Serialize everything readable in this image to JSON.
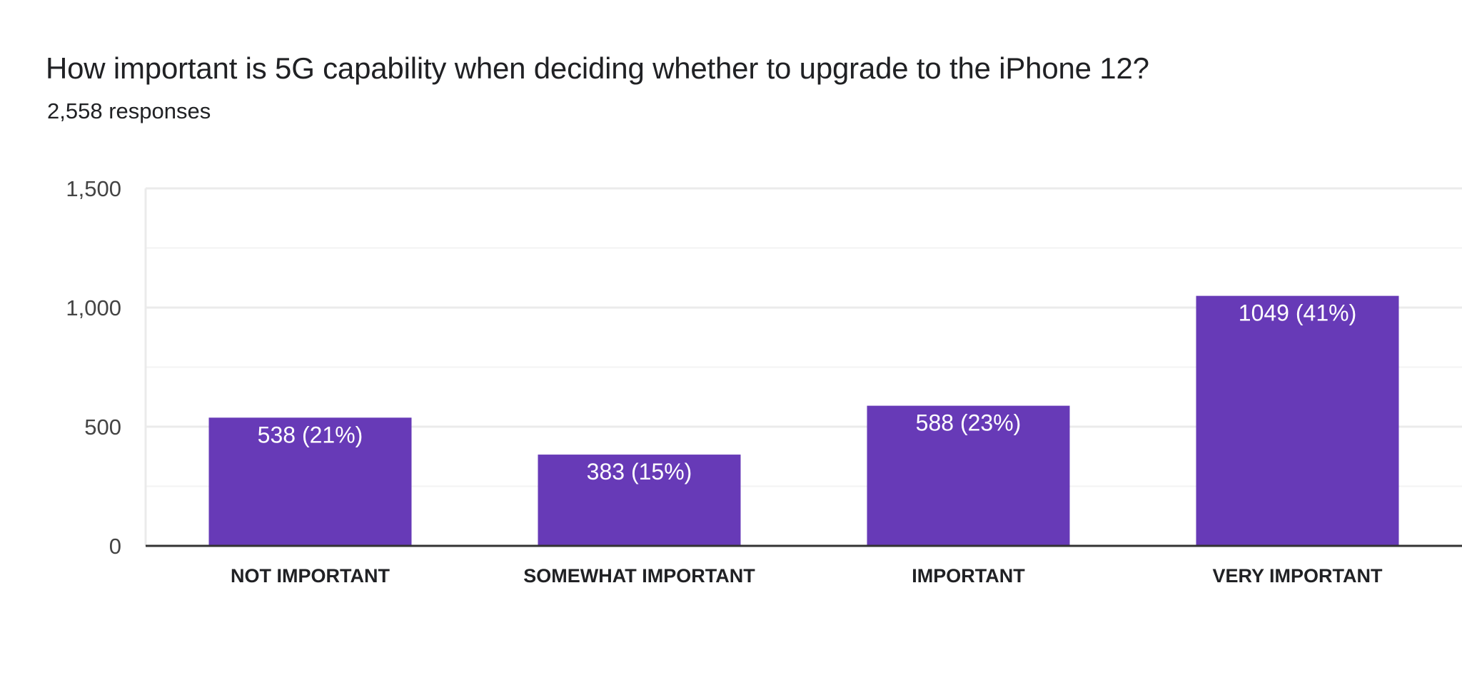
{
  "header": {
    "title": "How important is 5G capability when deciding whether to upgrade to the iPhone 12?",
    "responses": "2,558 responses"
  },
  "colors": {
    "bar": "#673AB7",
    "grid": "#ebebeb",
    "axis": "#333333"
  },
  "chart_data": {
    "type": "bar",
    "title": "How important is 5G capability when deciding whether to upgrade to the iPhone 12?",
    "subtitle": "2,558 responses",
    "categories": [
      "NOT IMPORTANT",
      "SOMEWHAT IMPORTANT",
      "IMPORTANT",
      "VERY IMPORTANT"
    ],
    "values": [
      538,
      383,
      588,
      1049
    ],
    "data_labels": [
      "538 (21%)",
      "383 (15%)",
      "588 (23%)",
      "1049 (41%)"
    ],
    "ylim": [
      0,
      1500
    ],
    "yticks": [
      0,
      500,
      1000,
      1500
    ],
    "ytick_labels": [
      "0",
      "500",
      "1,000",
      "1,500"
    ],
    "minor_gridlines": [
      250,
      750,
      1250
    ],
    "grid": true,
    "xlabel": "",
    "ylabel": ""
  }
}
